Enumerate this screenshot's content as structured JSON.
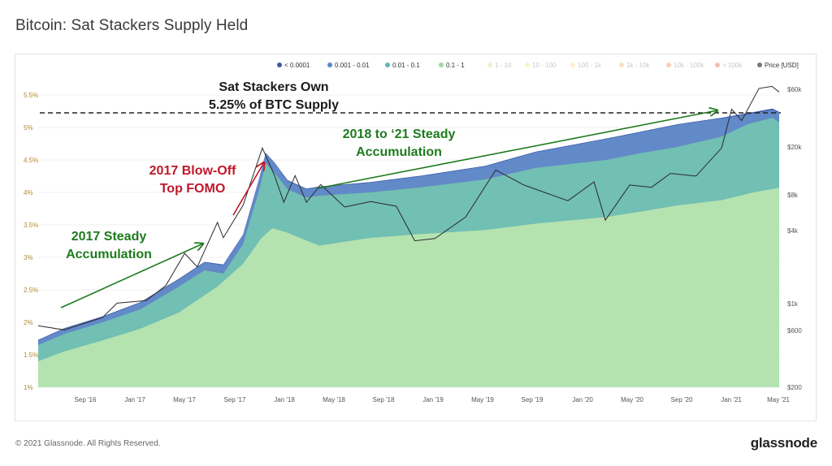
{
  "header": {
    "title": "Bitcoin: Sat Stackers Supply Held"
  },
  "footer": {
    "copyright": "© 2021 Glassnode. All Rights Reserved.",
    "logo": "glassnode"
  },
  "watermark": "glassnode",
  "chart_data": {
    "type": "area",
    "title": "Bitcoin: Sat Stackers Supply Held",
    "legend_position": "top-right",
    "legend": [
      {
        "name": "< 0.0001",
        "color": "#3b5aa6",
        "active": true
      },
      {
        "name": "0.001 - 0.01",
        "color": "#5b86c9",
        "active": true
      },
      {
        "name": "0.01 - 0.1",
        "color": "#5fb7ad",
        "active": true
      },
      {
        "name": "0.1 - 1",
        "color": "#9fd89a",
        "active": true
      },
      {
        "name": "1 - 10",
        "color": "#d6ec9a",
        "active": false
      },
      {
        "name": "10 - 100",
        "color": "#f1ed9e",
        "active": false
      },
      {
        "name": "100 - 1k",
        "color": "#f6e3a0",
        "active": false
      },
      {
        "name": "1k - 10k",
        "color": "#f3c98d",
        "active": false
      },
      {
        "name": "10k - 100k",
        "color": "#eeab78",
        "active": false
      },
      {
        "name": "> 100k",
        "color": "#e58b6e",
        "active": false
      },
      {
        "name": "Price [USD]",
        "color": "#7a7a7a",
        "active": true
      }
    ],
    "x_ticks": [
      "Sep '16",
      "Jan '17",
      "May '17",
      "Sep '17",
      "Jan '18",
      "May '18",
      "Sep '18",
      "Jan '19",
      "May '19",
      "Sep '19",
      "Jan '20",
      "May '20",
      "Sep '20",
      "Jan '21",
      "May '21"
    ],
    "x_range": [
      "2016-07-01",
      "2021-05-05"
    ],
    "y_left": {
      "ticks": [
        "1%",
        "1.5%",
        "2%",
        "2.5%",
        "3%",
        "3.5%",
        "4%",
        "4.5%",
        "5%",
        "5.5%"
      ],
      "values": [
        1,
        1.5,
        2,
        2.5,
        3,
        3.5,
        4,
        4.5,
        5,
        5.5
      ],
      "range": [
        1,
        5.5
      ]
    },
    "y_right": {
      "ticks": [
        "$200",
        "$600",
        "$1k",
        "$4k",
        "$8k",
        "$20k",
        "$60k"
      ],
      "values": [
        200,
        600,
        1000,
        4000,
        8000,
        20000,
        60000
      ],
      "scale": "log"
    },
    "series": [
      {
        "name": "0.1 - 1",
        "color": "#b5e3b0",
        "unit": "% of supply",
        "points": [
          [
            "2016-07-01",
            1.4
          ],
          [
            "2016-09-01",
            1.55
          ],
          [
            "2016-12-01",
            1.72
          ],
          [
            "2017-03-01",
            1.9
          ],
          [
            "2017-06-01",
            2.15
          ],
          [
            "2017-09-01",
            2.55
          ],
          [
            "2017-11-01",
            2.9
          ],
          [
            "2017-12-15",
            3.3
          ],
          [
            "2018-01-10",
            3.45
          ],
          [
            "2018-02-15",
            3.38
          ],
          [
            "2018-05-01",
            3.18
          ],
          [
            "2018-09-01",
            3.3
          ],
          [
            "2019-01-01",
            3.36
          ],
          [
            "2019-06-01",
            3.42
          ],
          [
            "2019-10-01",
            3.52
          ],
          [
            "2020-03-15",
            3.62
          ],
          [
            "2020-06-01",
            3.7
          ],
          [
            "2020-09-01",
            3.8
          ],
          [
            "2020-12-15",
            3.88
          ],
          [
            "2021-03-01",
            4.0
          ],
          [
            "2021-05-01",
            4.07
          ]
        ]
      },
      {
        "name": "0.01 - 0.1",
        "color": "#72bfb3",
        "unit": "% of supply (cumulative top)",
        "points": [
          [
            "2016-07-01",
            1.65
          ],
          [
            "2016-09-01",
            1.82
          ],
          [
            "2016-12-01",
            2.0
          ],
          [
            "2017-03-01",
            2.2
          ],
          [
            "2017-06-01",
            2.55
          ],
          [
            "2017-08-01",
            2.8
          ],
          [
            "2017-09-15",
            2.75
          ],
          [
            "2017-11-01",
            3.2
          ],
          [
            "2017-12-10",
            4.05
          ],
          [
            "2017-12-25",
            4.45
          ],
          [
            "2018-01-15",
            4.3
          ],
          [
            "2018-02-15",
            4.05
          ],
          [
            "2018-04-01",
            3.92
          ],
          [
            "2018-05-01",
            3.95
          ],
          [
            "2018-09-01",
            4.0
          ],
          [
            "2019-01-01",
            4.08
          ],
          [
            "2019-06-01",
            4.2
          ],
          [
            "2019-10-01",
            4.38
          ],
          [
            "2020-03-15",
            4.5
          ],
          [
            "2020-06-01",
            4.6
          ],
          [
            "2020-09-01",
            4.7
          ],
          [
            "2020-12-15",
            4.86
          ],
          [
            "2021-02-15",
            5.05
          ],
          [
            "2021-04-15",
            5.15
          ],
          [
            "2021-05-01",
            5.08
          ]
        ]
      },
      {
        "name": "0.001 - 0.01",
        "color": "#6289c8",
        "unit": "% of supply (cumulative top)",
        "points": [
          [
            "2016-07-01",
            1.72
          ],
          [
            "2016-09-01",
            1.9
          ],
          [
            "2016-12-01",
            2.08
          ],
          [
            "2017-03-01",
            2.3
          ],
          [
            "2017-06-01",
            2.66
          ],
          [
            "2017-08-01",
            2.92
          ],
          [
            "2017-09-15",
            2.88
          ],
          [
            "2017-11-01",
            3.34
          ],
          [
            "2017-12-10",
            4.22
          ],
          [
            "2017-12-25",
            4.6
          ],
          [
            "2018-01-15",
            4.45
          ],
          [
            "2018-02-15",
            4.18
          ],
          [
            "2018-04-01",
            4.05
          ],
          [
            "2018-05-01",
            4.08
          ],
          [
            "2018-09-01",
            4.15
          ],
          [
            "2019-01-01",
            4.25
          ],
          [
            "2019-06-01",
            4.4
          ],
          [
            "2019-10-01",
            4.62
          ],
          [
            "2020-03-15",
            4.82
          ],
          [
            "2020-06-01",
            4.92
          ],
          [
            "2020-09-01",
            5.04
          ],
          [
            "2020-12-15",
            5.14
          ],
          [
            "2021-02-15",
            5.2
          ],
          [
            "2021-04-15",
            5.27
          ],
          [
            "2021-05-01",
            5.22
          ]
        ]
      },
      {
        "name": "< 0.0001",
        "color": "#3b5aa6",
        "unit": "% of supply (cumulative top)",
        "points": [
          [
            "2016-07-01",
            1.73
          ],
          [
            "2016-09-01",
            1.91
          ],
          [
            "2016-12-01",
            2.09
          ],
          [
            "2017-03-01",
            2.31
          ],
          [
            "2017-06-01",
            2.67
          ],
          [
            "2017-08-01",
            2.93
          ],
          [
            "2017-09-15",
            2.89
          ],
          [
            "2017-11-01",
            3.35
          ],
          [
            "2017-12-10",
            4.23
          ],
          [
            "2017-12-25",
            4.61
          ],
          [
            "2018-01-15",
            4.46
          ],
          [
            "2018-02-15",
            4.19
          ],
          [
            "2018-04-01",
            4.06
          ],
          [
            "2018-05-01",
            4.09
          ],
          [
            "2018-09-01",
            4.16
          ],
          [
            "2019-01-01",
            4.26
          ],
          [
            "2019-06-01",
            4.41
          ],
          [
            "2019-10-01",
            4.63
          ],
          [
            "2020-03-15",
            4.83
          ],
          [
            "2020-06-01",
            4.93
          ],
          [
            "2020-09-01",
            5.05
          ],
          [
            "2020-12-15",
            5.15
          ],
          [
            "2021-02-15",
            5.22
          ],
          [
            "2021-04-15",
            5.29
          ],
          [
            "2021-05-01",
            5.24
          ]
        ]
      },
      {
        "name": "Price [USD]",
        "color": "#2a2a2a",
        "axis": "right",
        "points": [
          [
            "2016-07-01",
            650
          ],
          [
            "2016-09-01",
            600
          ],
          [
            "2016-12-01",
            760
          ],
          [
            "2017-01-05",
            1000
          ],
          [
            "2017-03-15",
            1050
          ],
          [
            "2017-05-01",
            1400
          ],
          [
            "2017-06-15",
            2600
          ],
          [
            "2017-07-15",
            2000
          ],
          [
            "2017-09-01",
            4700
          ],
          [
            "2017-09-15",
            3500
          ],
          [
            "2017-11-01",
            6500
          ],
          [
            "2017-12-17",
            19500
          ],
          [
            "2018-01-15",
            11500
          ],
          [
            "2018-02-06",
            6900
          ],
          [
            "2018-03-05",
            11500
          ],
          [
            "2018-04-01",
            6900
          ],
          [
            "2018-05-05",
            9700
          ],
          [
            "2018-07-01",
            6300
          ],
          [
            "2018-09-01",
            7000
          ],
          [
            "2018-11-01",
            6400
          ],
          [
            "2018-12-15",
            3300
          ],
          [
            "2019-02-01",
            3450
          ],
          [
            "2019-04-15",
            5200
          ],
          [
            "2019-06-26",
            12800
          ],
          [
            "2019-09-01",
            9600
          ],
          [
            "2019-12-15",
            7100
          ],
          [
            "2020-02-15",
            10200
          ],
          [
            "2020-03-13",
            4900
          ],
          [
            "2020-05-10",
            9600
          ],
          [
            "2020-07-01",
            9200
          ],
          [
            "2020-08-15",
            12000
          ],
          [
            "2020-10-15",
            11400
          ],
          [
            "2020-12-15",
            19500
          ],
          [
            "2021-01-08",
            41000
          ],
          [
            "2021-02-01",
            33000
          ],
          [
            "2021-03-14",
            61000
          ],
          [
            "2021-04-14",
            63500
          ],
          [
            "2021-05-01",
            57000
          ]
        ]
      }
    ],
    "reference_line": {
      "value": 5.25,
      "style": "dashed",
      "color": "#222222"
    },
    "annotations": [
      {
        "lines": [
          "Sat Stackers Own",
          "5.25% of BTC Supply"
        ],
        "color": "#1a1a1a"
      },
      {
        "lines": [
          "2018 to ‘21 Steady",
          "Accumulation"
        ],
        "color": "#1e7b1e",
        "arrow": {
          "from": [
            "2018-05-01",
            4.15
          ],
          "to": [
            "2021-01-15",
            5.45
          ]
        }
      },
      {
        "lines": [
          "2017 Blow-Off",
          "Top FOMO"
        ],
        "color": "#c0172a",
        "arrow": {
          "from": [
            "2017-09-01",
            3.5
          ],
          "to": [
            "2017-12-20",
            4.52
          ]
        }
      },
      {
        "lines": [
          "2017 Steady",
          "Accumulation"
        ],
        "color": "#1e7b1e",
        "arrow": {
          "from": [
            "2016-08-15",
            1.95
          ],
          "to": [
            "2017-08-01",
            2.92
          ]
        }
      }
    ]
  }
}
